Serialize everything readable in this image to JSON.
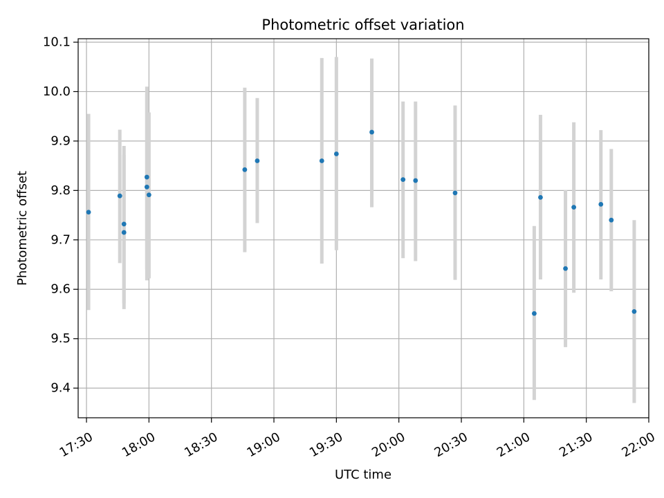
{
  "chart_data": {
    "type": "scatter",
    "title": "Photometric offset variation",
    "xlabel": "UTC time",
    "ylabel": "Photometric offset",
    "xlim": [
      "17:26",
      "22:00"
    ],
    "ylim": [
      9.34,
      10.107
    ],
    "x_ticks": [
      "17:30",
      "18:00",
      "18:30",
      "19:00",
      "19:30",
      "20:00",
      "20:30",
      "21:00",
      "21:30",
      "22:00"
    ],
    "y_ticks": [
      9.4,
      9.5,
      9.6,
      9.7,
      9.8,
      9.9,
      10.0,
      10.1
    ],
    "y_tick_labels": [
      "9.4",
      "9.5",
      "9.6",
      "9.7",
      "9.8",
      "9.9",
      "10.0",
      "10.1"
    ],
    "grid": true,
    "colors": {
      "points": "#1f77b4",
      "errorbars": "#d3d3d3",
      "grid": "#b0b0b0"
    },
    "points": [
      {
        "x": "17:31",
        "y": 9.756,
        "low": 9.558,
        "high": 9.955
      },
      {
        "x": "17:46",
        "y": 9.789,
        "low": 9.653,
        "high": 9.923
      },
      {
        "x": "17:48",
        "y": 9.732,
        "low": 9.572,
        "high": 9.89
      },
      {
        "x": "17:48",
        "y": 9.715,
        "low": 9.56,
        "high": 9.872
      },
      {
        "x": "17:59",
        "y": 9.827,
        "low": 9.64,
        "high": 10.01
      },
      {
        "x": "17:59",
        "y": 9.807,
        "low": 9.618,
        "high": 9.995
      },
      {
        "x": "18:00",
        "y": 9.791,
        "low": 9.622,
        "high": 9.958
      },
      {
        "x": "18:46",
        "y": 9.842,
        "low": 9.675,
        "high": 10.008
      },
      {
        "x": "18:52",
        "y": 9.86,
        "low": 9.734,
        "high": 9.987
      },
      {
        "x": "19:23",
        "y": 9.86,
        "low": 9.652,
        "high": 10.068
      },
      {
        "x": "19:30",
        "y": 9.874,
        "low": 9.679,
        "high": 10.07
      },
      {
        "x": "19:47",
        "y": 9.918,
        "low": 9.766,
        "high": 10.067
      },
      {
        "x": "20:02",
        "y": 9.822,
        "low": 9.663,
        "high": 9.98
      },
      {
        "x": "20:08",
        "y": 9.82,
        "low": 9.657,
        "high": 9.98
      },
      {
        "x": "20:27",
        "y": 9.795,
        "low": 9.619,
        "high": 9.972
      },
      {
        "x": "21:05",
        "y": 9.551,
        "low": 9.376,
        "high": 9.728
      },
      {
        "x": "21:08",
        "y": 9.786,
        "low": 9.62,
        "high": 9.953
      },
      {
        "x": "21:20",
        "y": 9.642,
        "low": 9.483,
        "high": 9.801
      },
      {
        "x": "21:24",
        "y": 9.766,
        "low": 9.593,
        "high": 9.938
      },
      {
        "x": "21:37",
        "y": 9.772,
        "low": 9.62,
        "high": 9.922
      },
      {
        "x": "21:42",
        "y": 9.74,
        "low": 9.596,
        "high": 9.884
      },
      {
        "x": "21:53",
        "y": 9.555,
        "low": 9.37,
        "high": 9.74
      }
    ]
  }
}
